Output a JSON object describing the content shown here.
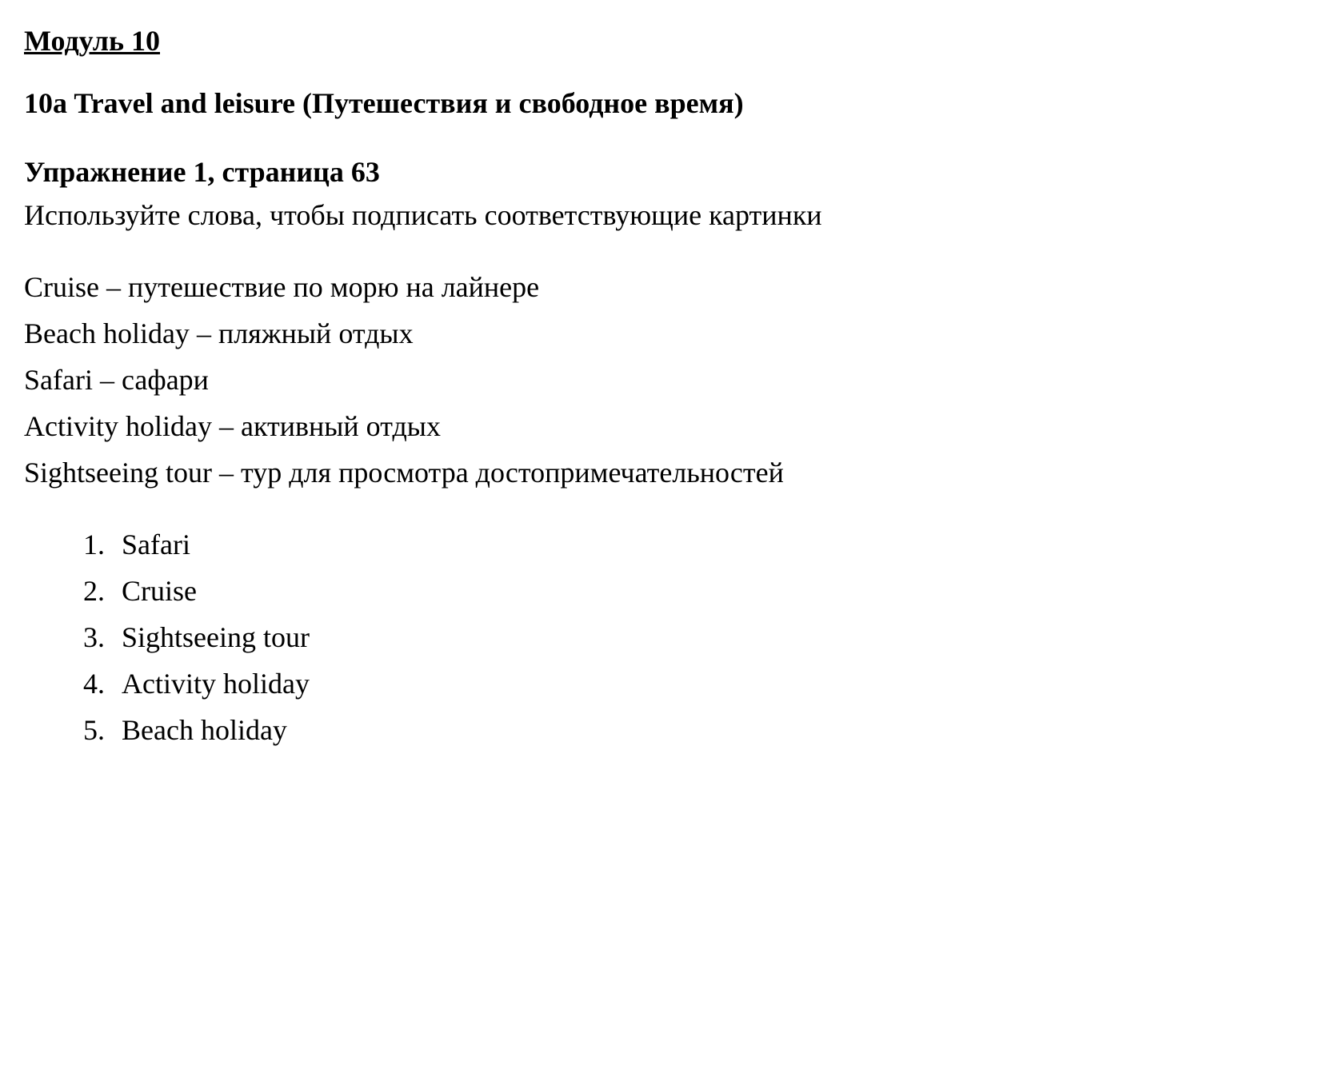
{
  "module": {
    "heading": "Модуль 10"
  },
  "section": {
    "heading": "10a Travel and leisure (Путешествия и свободное время)"
  },
  "exercise": {
    "heading": "Упражнение 1, страница 63",
    "instruction": "Используйте слова, чтобы подписать соответствующие картинки"
  },
  "vocabulary": [
    {
      "term": "Cruise",
      "translation": "путешествие по морю на лайнере"
    },
    {
      "term": "Beach holiday",
      "translation": "пляжный отдых"
    },
    {
      "term": "Safari",
      "translation": "сафари"
    },
    {
      "term": "Activity holiday",
      "translation": "активный отдых"
    },
    {
      "term": "Sightseeing tour",
      "translation": "тур для просмотра достопримечательностей"
    }
  ],
  "answers": [
    {
      "num": "1.",
      "text": "Safari"
    },
    {
      "num": "2.",
      "text": "Cruise"
    },
    {
      "num": "3.",
      "text": "Sightseeing tour"
    },
    {
      "num": "4.",
      "text": "Activity holiday"
    },
    {
      "num": "5.",
      "text": "Beach holiday"
    }
  ],
  "style": {
    "background_color": "#ffffff",
    "text_color": "#000000",
    "font_family": "Times New Roman",
    "heading_fontsize": 36,
    "body_fontsize": 36,
    "heading_weight": "bold",
    "body_weight": "normal"
  }
}
